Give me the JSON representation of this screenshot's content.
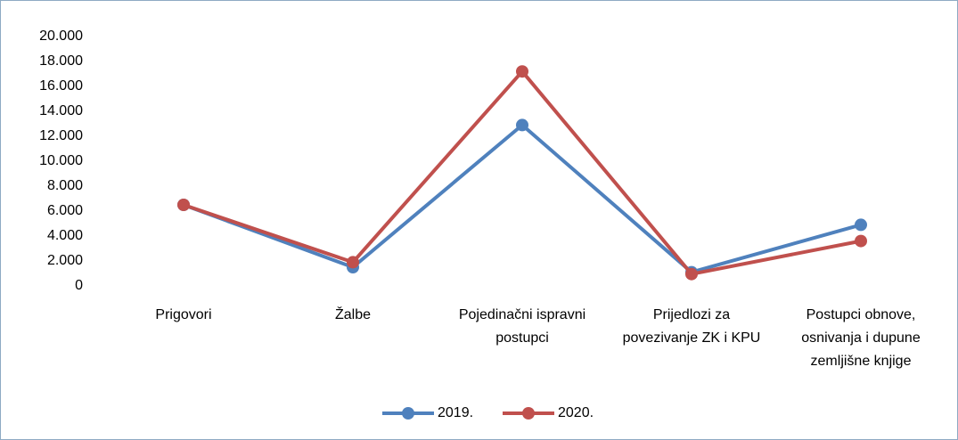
{
  "chart_data": {
    "type": "line",
    "categories": [
      "Prigovori",
      "Žalbe",
      "Pojedinačni ispravni postupci",
      "Prijedlozi za povezivanje ZK i KPU",
      "Postupci obnove, osnivanja i dupune zemljišne knjige"
    ],
    "series": [
      {
        "name": "2019.",
        "color": "#4f81bd",
        "values": [
          6500,
          1500,
          12900,
          1100,
          4900
        ]
      },
      {
        "name": "2020.",
        "color": "#c0504d",
        "values": [
          6500,
          1900,
          17200,
          950,
          3600
        ]
      }
    ],
    "ylim": [
      0,
      20000
    ],
    "yticks": [
      0,
      {
        "value": 2000,
        "label": "2.000"
      },
      {
        "value": 4000,
        "label": "4.000"
      },
      {
        "value": 6000,
        "label": "6.000"
      },
      {
        "value": 8000,
        "label": "8.000"
      },
      {
        "value": 10000,
        "label": "10.000"
      },
      {
        "value": 12000,
        "label": "12.000"
      },
      {
        "value": 14000,
        "label": "14.000"
      },
      {
        "value": 16000,
        "label": "16.000"
      },
      {
        "value": 18000,
        "label": "18.000"
      },
      {
        "value": 20000,
        "label": "20.000"
      }
    ],
    "legend": "bottom"
  }
}
